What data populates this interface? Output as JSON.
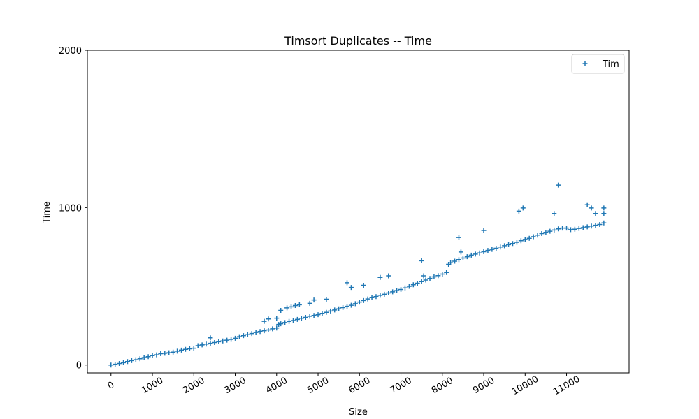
{
  "chart_data": {
    "type": "scatter",
    "title": "Timsort Duplicates -- Time",
    "xlabel": "Size",
    "ylabel": "Time",
    "xlim": [
      -570,
      12510
    ],
    "ylim": [
      -50,
      2000
    ],
    "xticks": [
      0,
      1000,
      2000,
      3000,
      4000,
      5000,
      6000,
      7000,
      8000,
      9000,
      10000,
      11000
    ],
    "xtick_labels": [
      "0",
      "1000",
      "2000",
      "3000",
      "4000",
      "5000",
      "6000",
      "7000",
      "8000",
      "9000",
      "10000",
      "11000"
    ],
    "yticks": [
      0,
      1000,
      2000
    ],
    "ytick_labels": [
      "0",
      "1000",
      "2000"
    ],
    "grid": false,
    "legend_position": "top-right",
    "marker": "plus",
    "color": "#1f77b4",
    "series": [
      {
        "name": "Tim",
        "x": [
          0,
          100,
          200,
          300,
          400,
          500,
          600,
          700,
          800,
          900,
          1000,
          1100,
          1200,
          1300,
          1400,
          1500,
          1600,
          1700,
          1800,
          1900,
          2000,
          2100,
          2200,
          2300,
          2400,
          2500,
          2600,
          2700,
          2800,
          2900,
          3000,
          3100,
          3200,
          3300,
          3400,
          3500,
          3600,
          3700,
          3800,
          3900,
          4000,
          4050,
          4100,
          4200,
          4300,
          4400,
          4500,
          4600,
          4700,
          4800,
          4900,
          5000,
          5100,
          5200,
          5300,
          5400,
          5500,
          5600,
          5700,
          5800,
          5900,
          6000,
          6100,
          6200,
          6300,
          6400,
          6500,
          6600,
          6700,
          6800,
          6900,
          7000,
          7100,
          7200,
          7300,
          7400,
          7500,
          7600,
          7700,
          7800,
          7900,
          8000,
          8100,
          8150,
          8200,
          8300,
          8400,
          8500,
          8600,
          8700,
          8800,
          8900,
          9000,
          9100,
          9200,
          9300,
          9400,
          9500,
          9600,
          9700,
          9800,
          9900,
          10000,
          10100,
          10200,
          10300,
          10400,
          10500,
          10600,
          10700,
          10800,
          10900,
          11000,
          11100,
          11200,
          11300,
          11400,
          11500,
          11600,
          11700,
          11800,
          11900,
          2400,
          3700,
          3800,
          4000,
          4100,
          4250,
          4350,
          4450,
          4550,
          4800,
          4900,
          5200,
          5700,
          5800,
          6100,
          6500,
          6700,
          7500,
          7550,
          8400,
          8450,
          9000,
          9850,
          9950,
          10700,
          10800,
          11500,
          11600,
          11700,
          11900,
          11900
        ],
        "y": [
          0,
          5,
          10,
          15,
          22,
          28,
          34,
          40,
          47,
          53,
          60,
          65,
          72,
          75,
          78,
          82,
          88,
          95,
          100,
          103,
          107,
          123,
          128,
          133,
          138,
          143,
          148,
          153,
          158,
          163,
          170,
          180,
          187,
          193,
          200,
          207,
          213,
          218,
          223,
          230,
          235,
          258,
          262,
          270,
          277,
          283,
          290,
          297,
          303,
          310,
          315,
          320,
          328,
          335,
          343,
          350,
          357,
          365,
          373,
          380,
          390,
          400,
          410,
          420,
          428,
          435,
          443,
          450,
          458,
          465,
          473,
          480,
          490,
          500,
          510,
          520,
          530,
          540,
          550,
          560,
          568,
          578,
          588,
          640,
          650,
          660,
          670,
          680,
          688,
          698,
          705,
          712,
          720,
          728,
          735,
          742,
          750,
          758,
          765,
          772,
          780,
          790,
          798,
          805,
          815,
          825,
          835,
          843,
          850,
          858,
          865,
          870,
          870,
          860,
          863,
          868,
          873,
          878,
          883,
          888,
          893,
          903,
          173,
          278,
          293,
          298,
          347,
          363,
          370,
          378,
          383,
          392,
          413,
          418,
          523,
          493,
          507,
          557,
          567,
          663,
          567,
          810,
          718,
          855,
          978,
          998,
          963,
          1143,
          1018,
          998,
          963,
          998,
          963
        ]
      }
    ]
  }
}
